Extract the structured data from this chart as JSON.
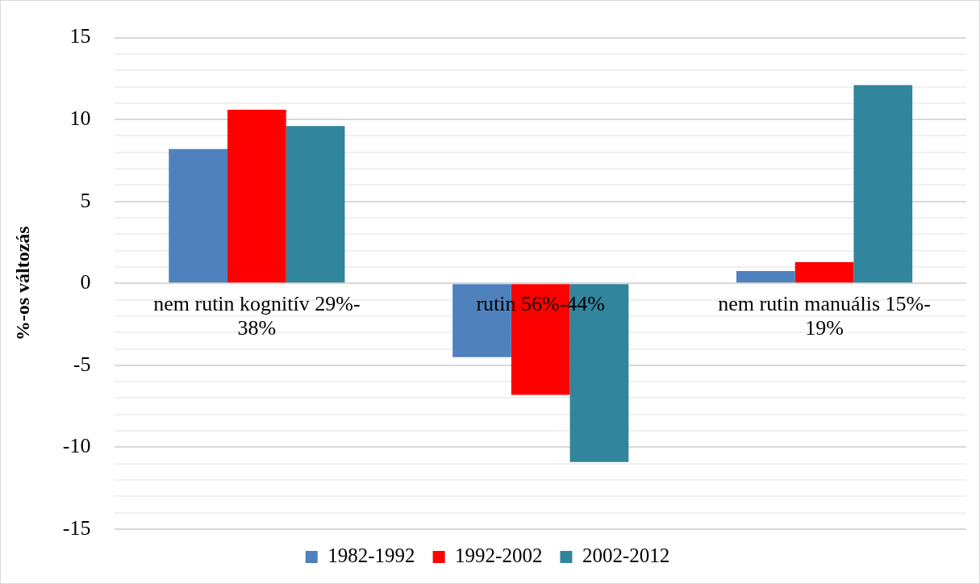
{
  "chart_data": {
    "type": "bar",
    "ylabel": "%-os változás",
    "categories": [
      "nem rutin kognitív 29%-38%",
      "rutin 56%-44%",
      "nem rutin manuális 15%-19%"
    ],
    "series": [
      {
        "name": "1982-1992",
        "color": "#4f81bd",
        "values": [
          8.2,
          -4.5,
          0.75
        ]
      },
      {
        "name": "1992-2002",
        "color": "#ff0000",
        "values": [
          10.6,
          -6.8,
          1.3
        ]
      },
      {
        "name": "2002-2012",
        "color": "#31859c",
        "values": [
          9.6,
          -10.9,
          12.1
        ]
      }
    ],
    "ylim": [
      -15,
      15
    ],
    "yticks": [
      -15,
      {
        "value": -14,
        "label": null
      },
      {
        "value": -13,
        "label": null
      },
      {
        "value": -12,
        "label": null
      },
      {
        "value": -11,
        "label": null
      },
      -10,
      {
        "value": -9,
        "label": null
      },
      {
        "value": -8,
        "label": null
      },
      {
        "value": -7,
        "label": null
      },
      {
        "value": -6,
        "label": null
      },
      -5,
      {
        "value": -4,
        "label": null
      },
      {
        "value": -3,
        "label": null
      },
      {
        "value": -2,
        "label": null
      },
      {
        "value": -1,
        "label": null
      },
      0,
      {
        "value": 1,
        "label": null
      },
      {
        "value": 2,
        "label": null
      },
      {
        "value": 3,
        "label": null
      },
      {
        "value": 4,
        "label": null
      },
      5,
      {
        "value": 6,
        "label": null
      },
      {
        "value": 7,
        "label": null
      },
      {
        "value": 8,
        "label": null
      },
      {
        "value": 9,
        "label": null
      },
      10,
      {
        "value": 11,
        "label": null
      },
      {
        "value": 12,
        "label": null
      },
      {
        "value": 13,
        "label": null
      },
      {
        "value": 14,
        "label": null
      },
      15
    ],
    "grid": true,
    "legend": "bottom"
  }
}
